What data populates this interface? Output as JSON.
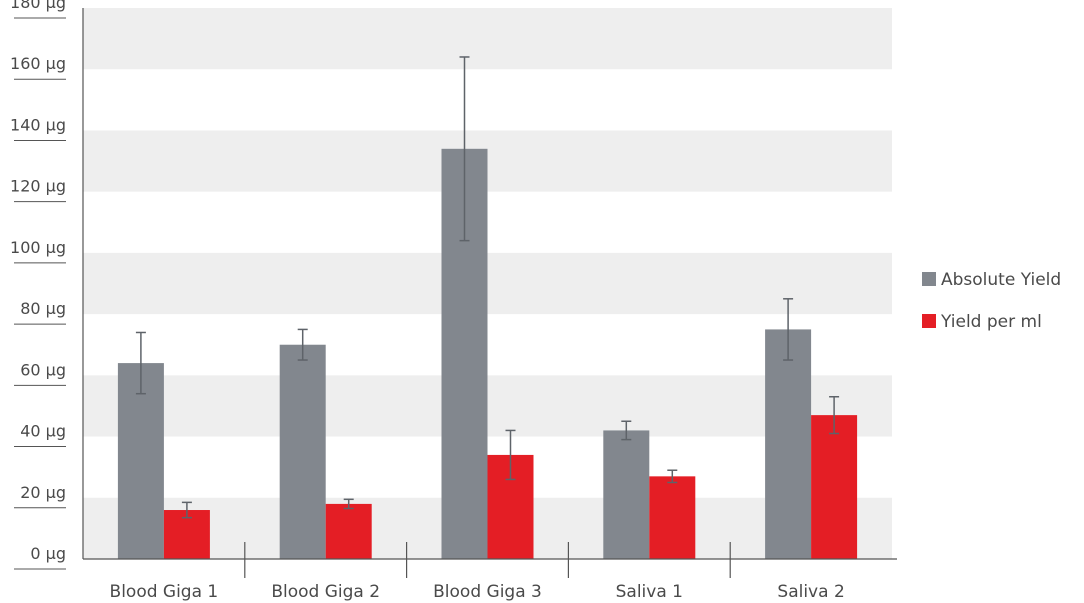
{
  "chart_data": {
    "type": "bar",
    "title": "",
    "xlabel": "",
    "ylabel": "",
    "unit": "µg",
    "ylim": [
      0,
      180
    ],
    "yticks": [
      0,
      20,
      40,
      60,
      80,
      100,
      120,
      140,
      160,
      180
    ],
    "ytick_labels": [
      "0 µg",
      "20 µg",
      "40 µg",
      "60 µg",
      "80 µg",
      "100 µg",
      "120 µg",
      "140 µg",
      "160 µg",
      "180 µg"
    ],
    "categories": [
      "Blood Giga 1",
      "Blood Giga 2",
      "Blood Giga 3",
      "Saliva 1",
      "Saliva 2"
    ],
    "series": [
      {
        "name": "Absolute Yield",
        "color": "#82878e",
        "values": [
          64,
          70,
          134,
          42,
          75
        ],
        "error": [
          10,
          5,
          30,
          3,
          10
        ]
      },
      {
        "name": "Yield per ml",
        "color": "#e41e25",
        "values": [
          16,
          18,
          34,
          27,
          47
        ],
        "error": [
          2.5,
          1.5,
          8,
          2,
          6
        ]
      }
    ],
    "grid": "alternating-bands",
    "band_color": "#eeeeee",
    "legend": "right"
  }
}
